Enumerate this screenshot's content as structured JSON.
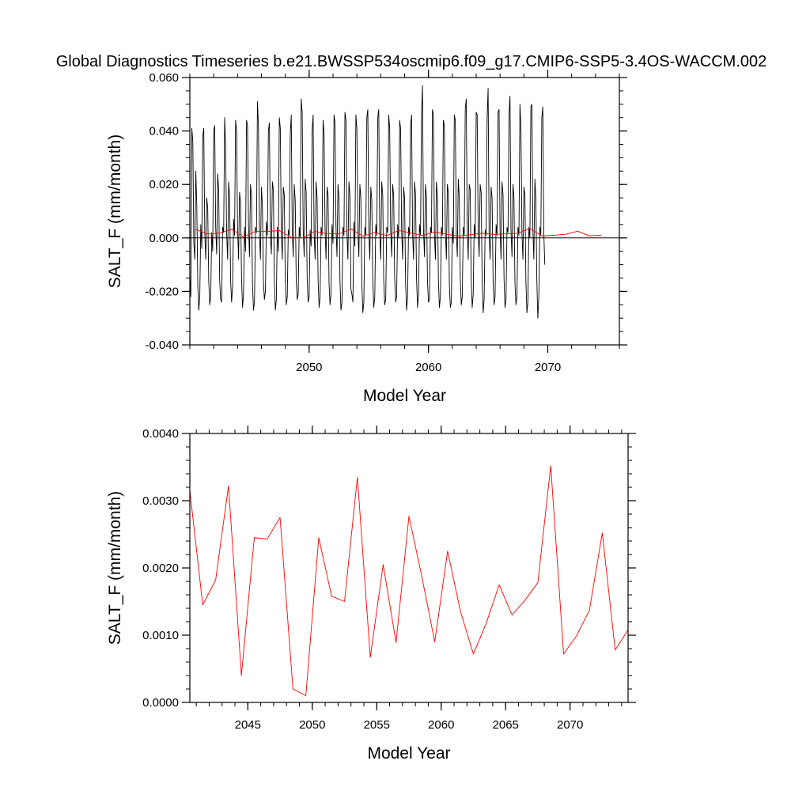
{
  "figure_title": "Global Diagnostics Timeseries b.e21.BWSSP534oscmip6.f09_g17.CMIP6-SSP5-3.4OS-WACCM.002",
  "colors": {
    "monthly_line": "#000000",
    "annual_line": "#ff0000",
    "axes": "#000000"
  },
  "chart_data": [
    {
      "type": "line",
      "xlabel": "Model Year",
      "ylabel": "SALT_F (mm/month)",
      "xlim": [
        2040.0,
        2076.0
      ],
      "ylim": [
        -0.04,
        0.06
      ],
      "x_ticks": [
        2050,
        2060,
        2070
      ],
      "x_tick_labels": [
        "2050",
        "2060",
        "2070"
      ],
      "y_ticks": [
        -0.04,
        -0.02,
        0.0,
        0.02,
        0.04,
        0.06
      ],
      "y_tick_labels": [
        "-0.040",
        "-0.020",
        "0.000",
        "0.020",
        "0.040",
        "0.060"
      ],
      "zero_line": true,
      "grid": false,
      "legend": "none",
      "series": [
        {
          "role": "monthly",
          "color": "#000000",
          "x_start": 2040.0,
          "x_step": 0.0833333,
          "values": [
            -0.014,
            -0.022,
            0.041,
            0.036,
            -0.002,
            -0.008,
            0.025,
            0.012,
            -0.018,
            -0.027,
            -0.022,
            0.005,
            -0.004,
            0.038,
            0.041,
            0.002,
            -0.008,
            0.015,
            0.011,
            -0.016,
            -0.025,
            -0.022,
            0.002,
            -0.005,
            0.04,
            0.042,
            0.004,
            -0.006,
            0.024,
            0.018,
            -0.016,
            -0.023,
            -0.024,
            0.004,
            0.002,
            0.045,
            0.034,
            0.002,
            -0.008,
            0.021,
            0.015,
            -0.016,
            -0.024,
            -0.018,
            0.007,
            0.001,
            0.044,
            0.04,
            0.004,
            -0.008,
            0.017,
            0.013,
            -0.015,
            -0.026,
            -0.021,
            0.004,
            -0.005,
            0.044,
            0.042,
            0.005,
            -0.007,
            0.02,
            0.016,
            -0.017,
            -0.027,
            -0.024,
            0.004,
            0.002,
            0.051,
            0.042,
            0.002,
            -0.008,
            0.019,
            0.012,
            -0.016,
            -0.023,
            -0.02,
            0.006,
            0.001,
            0.04,
            0.043,
            0.001,
            -0.006,
            0.021,
            0.018,
            -0.016,
            -0.027,
            -0.023,
            0.004,
            -0.005,
            0.045,
            0.041,
            0.002,
            -0.008,
            0.019,
            0.016,
            -0.016,
            -0.025,
            -0.022,
            0.003,
            0.001,
            0.039,
            0.046,
            0.003,
            -0.007,
            0.02,
            0.014,
            -0.016,
            -0.023,
            -0.021,
            0.004,
            0.0,
            0.052,
            0.047,
            0.003,
            -0.007,
            0.022,
            0.017,
            -0.015,
            -0.024,
            -0.022,
            0.003,
            -0.003,
            0.04,
            0.046,
            0.002,
            -0.008,
            0.021,
            0.015,
            -0.016,
            -0.026,
            -0.022,
            0.004,
            0.001,
            0.044,
            0.039,
            0.003,
            -0.008,
            0.019,
            0.016,
            -0.017,
            -0.025,
            -0.021,
            0.005,
            -0.002,
            0.046,
            0.043,
            0.004,
            -0.007,
            0.02,
            0.015,
            -0.016,
            -0.027,
            -0.024,
            0.004,
            0.001,
            0.047,
            0.044,
            0.002,
            -0.008,
            0.021,
            0.016,
            -0.019,
            -0.021,
            -0.024,
            0.006,
            -0.003,
            0.046,
            0.041,
            0.003,
            -0.007,
            0.02,
            0.015,
            -0.017,
            -0.028,
            -0.024,
            0.004,
            0.001,
            0.045,
            0.048,
            0.003,
            -0.008,
            0.019,
            0.014,
            -0.016,
            -0.026,
            -0.022,
            0.005,
            0.001,
            0.045,
            0.048,
            0.002,
            -0.008,
            0.021,
            0.016,
            -0.016,
            -0.025,
            -0.023,
            0.004,
            0.002,
            0.046,
            0.041,
            0.003,
            -0.007,
            0.02,
            0.016,
            -0.015,
            -0.024,
            -0.022,
            0.005,
            0.0,
            0.044,
            0.041,
            0.003,
            -0.008,
            0.019,
            0.015,
            -0.017,
            -0.027,
            -0.022,
            0.004,
            0.001,
            0.042,
            0.046,
            0.002,
            -0.008,
            0.021,
            0.016,
            -0.015,
            -0.026,
            -0.021,
            0.005,
            0.001,
            0.046,
            0.057,
            0.003,
            -0.007,
            0.02,
            0.015,
            -0.016,
            -0.024,
            -0.023,
            0.004,
            0.002,
            0.048,
            0.046,
            0.002,
            -0.008,
            0.021,
            0.016,
            -0.016,
            -0.026,
            -0.022,
            0.004,
            0.001,
            0.044,
            0.042,
            0.003,
            -0.008,
            0.02,
            0.017,
            -0.017,
            -0.026,
            -0.024,
            0.004,
            -0.002,
            0.046,
            0.044,
            0.002,
            -0.007,
            0.022,
            0.015,
            -0.015,
            -0.025,
            -0.022,
            0.004,
            0.001,
            0.048,
            0.052,
            0.004,
            -0.008,
            0.02,
            0.018,
            -0.016,
            -0.026,
            -0.021,
            0.005,
            0.0,
            0.047,
            0.046,
            0.003,
            -0.007,
            0.02,
            0.017,
            -0.016,
            -0.028,
            -0.023,
            0.003,
            0.001,
            0.045,
            0.056,
            0.002,
            -0.008,
            0.019,
            0.015,
            -0.016,
            -0.025,
            -0.022,
            0.005,
            0.001,
            0.047,
            0.048,
            0.003,
            -0.008,
            0.021,
            0.016,
            -0.015,
            -0.026,
            -0.023,
            0.004,
            0.002,
            0.046,
            0.053,
            0.003,
            -0.007,
            0.02,
            0.015,
            -0.017,
            -0.025,
            -0.022,
            0.004,
            0.001,
            0.05,
            0.041,
            0.002,
            -0.008,
            0.019,
            0.016,
            -0.016,
            -0.028,
            -0.024,
            0.004,
            0.0,
            0.049,
            0.05,
            0.003,
            -0.008,
            0.022,
            0.015,
            -0.016,
            -0.03,
            -0.022,
            0.004,
            0.001,
            0.045,
            0.049,
            0.002,
            -0.01
          ]
        },
        {
          "role": "annual_mean",
          "color": "#ff0000",
          "x": [
            2040.5,
            2041.5,
            2042.5,
            2043.5,
            2044.5,
            2045.5,
            2046.5,
            2047.5,
            2048.5,
            2049.5,
            2050.5,
            2051.5,
            2052.5,
            2053.5,
            2054.5,
            2055.5,
            2056.5,
            2057.5,
            2058.5,
            2059.5,
            2060.5,
            2061.5,
            2062.5,
            2063.5,
            2064.5,
            2065.5,
            2066.5,
            2067.5,
            2068.5,
            2069.5,
            2070.5,
            2071.5,
            2072.5,
            2073.5,
            2074.5
          ],
          "values": [
            0.00315,
            0.00145,
            0.00182,
            0.00322,
            0.0004,
            0.00245,
            0.00243,
            0.00275,
            0.0002,
            0.0001,
            0.00245,
            0.00158,
            0.0015,
            0.00335,
            0.00067,
            0.00205,
            0.00089,
            0.00277,
            0.00187,
            0.0009,
            0.00225,
            0.00135,
            0.00072,
            0.00118,
            0.00175,
            0.0013,
            0.00152,
            0.00178,
            0.00352,
            0.00072,
            0.00099,
            0.00137,
            0.00252,
            0.00078,
            0.00108
          ]
        }
      ]
    },
    {
      "type": "line",
      "xlabel": "Model Year",
      "ylabel": "SALT_F (mm/month)",
      "xlim": [
        2040.5,
        2074.5
      ],
      "ylim": [
        0.0,
        0.004
      ],
      "x_ticks": [
        2045,
        2050,
        2055,
        2060,
        2065,
        2070
      ],
      "x_tick_labels": [
        "2045",
        "2050",
        "2055",
        "2060",
        "2065",
        "2070"
      ],
      "y_ticks": [
        0.0,
        0.001,
        0.002,
        0.003,
        0.004
      ],
      "y_tick_labels": [
        "0.0000",
        "0.0010",
        "0.0020",
        "0.0030",
        "0.0040"
      ],
      "grid": false,
      "legend": "none",
      "series": [
        {
          "role": "annual_mean",
          "color": "#ff0000",
          "x": [
            2040.5,
            2041.5,
            2042.5,
            2043.5,
            2044.5,
            2045.5,
            2046.5,
            2047.5,
            2048.5,
            2049.5,
            2050.5,
            2051.5,
            2052.5,
            2053.5,
            2054.5,
            2055.5,
            2056.5,
            2057.5,
            2058.5,
            2059.5,
            2060.5,
            2061.5,
            2062.5,
            2063.5,
            2064.5,
            2065.5,
            2066.5,
            2067.5,
            2068.5,
            2069.5,
            2070.5,
            2071.5,
            2072.5,
            2073.5,
            2074.5
          ],
          "values": [
            0.00315,
            0.00145,
            0.00182,
            0.00322,
            0.0004,
            0.00245,
            0.00243,
            0.00275,
            0.0002,
            0.0001,
            0.00245,
            0.00158,
            0.0015,
            0.00335,
            0.00067,
            0.00205,
            0.00089,
            0.00277,
            0.00187,
            0.0009,
            0.00225,
            0.00135,
            0.00072,
            0.00118,
            0.00175,
            0.0013,
            0.00152,
            0.00178,
            0.00352,
            0.00072,
            0.00099,
            0.00137,
            0.00252,
            0.00078,
            0.00108
          ]
        }
      ]
    }
  ]
}
